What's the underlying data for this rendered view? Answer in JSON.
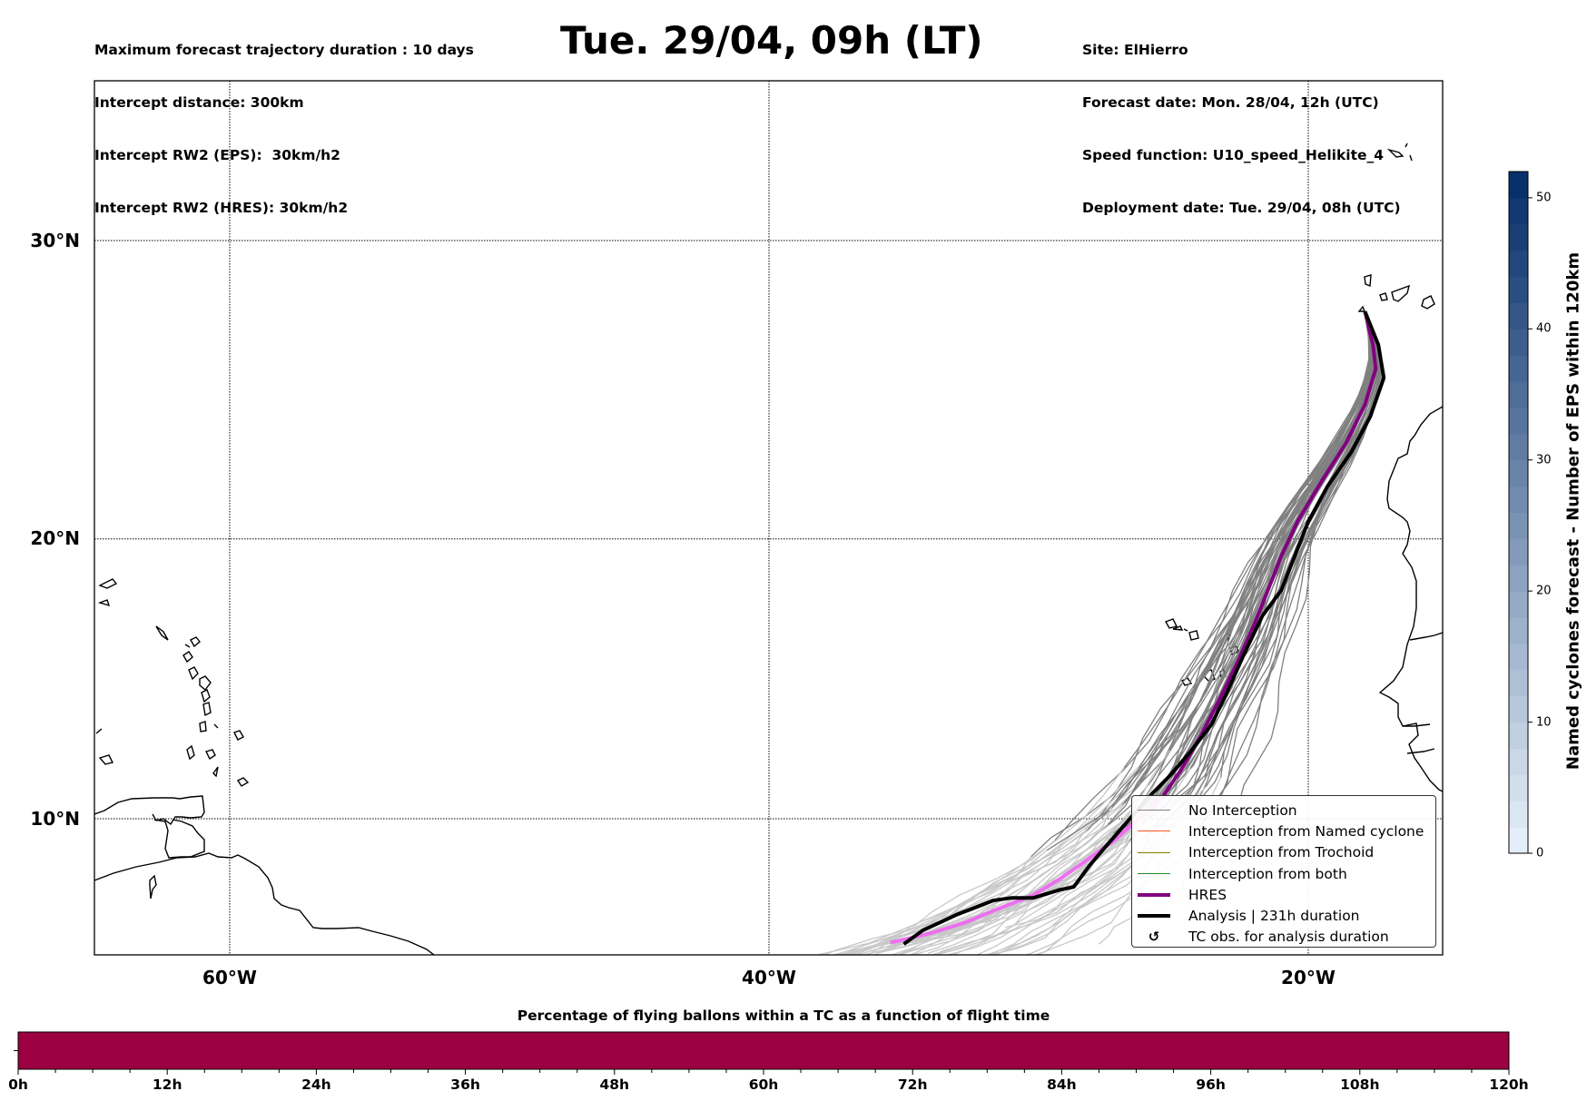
{
  "header": {
    "left_lines": [
      "Maximum forecast trajectory duration : 10 days",
      "Intercept distance: 300km",
      "Intercept RW2 (EPS):  30km/h2",
      "Intercept RW2 (HRES): 30km/h2"
    ],
    "title": "Tue. 29/04, 09h (LT)",
    "right_lines": [
      "Site: ElHierro",
      "Forecast date: Mon. 28/04, 12h (UTC)",
      "Speed function: U10_speed_Helikite_4",
      "Deployment date: Tue. 29/04, 08h (UTC)"
    ]
  },
  "colors": {
    "no_interception": "#808080",
    "no_interception_late": "#c8c8c8",
    "named_cyclone": "#ff5722",
    "trochoid": "#808000",
    "both": "#228b22",
    "hres": "#800080",
    "hres_late": "#ee6ef0",
    "analysis": "#000000",
    "time_bar": "#9b0041"
  },
  "chart_data": [
    {
      "type": "line",
      "title": "Tue. 29/04, 09h (LT)",
      "projection": "mercator",
      "xlim": [
        -65,
        -15
      ],
      "ylim": [
        5.3,
        35.2
      ],
      "xticks": [
        -60,
        -40,
        -20
      ],
      "xtick_labels": [
        "60°W",
        "40°W",
        "20°W"
      ],
      "yticks": [
        10,
        20,
        30
      ],
      "ytick_labels": [
        "10°N",
        "20°N",
        "30°N"
      ],
      "grid": true,
      "launch_site": {
        "name": "ElHierro",
        "lon": -17.9,
        "lat": 27.7
      },
      "series": [
        {
          "name": "HRES",
          "points": [
            [
              -17.9,
              27.7
            ],
            [
              -17.6,
              26.6
            ],
            [
              -17.5,
              25.8
            ],
            [
              -17.9,
              24.6
            ],
            [
              -18.6,
              23.3
            ],
            [
              -19.5,
              22.0
            ],
            [
              -20.4,
              20.6
            ],
            [
              -21.0,
              19.4
            ],
            [
              -21.5,
              18.2
            ],
            [
              -22.0,
              17.0
            ],
            [
              -22.6,
              15.7
            ],
            [
              -23.3,
              14.3
            ],
            [
              -24.0,
              13.0
            ],
            [
              -24.7,
              11.8
            ],
            [
              -25.4,
              10.8
            ],
            [
              -26.3,
              10.0
            ],
            [
              -27.2,
              9.2
            ],
            [
              -28.2,
              8.5
            ],
            [
              -29.2,
              7.8
            ],
            [
              -30.2,
              7.2
            ],
            [
              -31.5,
              6.7
            ],
            [
              -32.7,
              6.2
            ],
            [
              -34.0,
              5.8
            ],
            [
              -35.5,
              5.45
            ]
          ]
        },
        {
          "name": "Analysis | 231h duration",
          "points": [
            [
              -17.9,
              27.7
            ],
            [
              -17.4,
              26.6
            ],
            [
              -17.2,
              25.5
            ],
            [
              -17.7,
              24.2
            ],
            [
              -18.4,
              23.0
            ],
            [
              -19.3,
              21.8
            ],
            [
              -20.0,
              20.6
            ],
            [
              -20.5,
              19.4
            ],
            [
              -21.0,
              18.2
            ],
            [
              -21.7,
              17.3
            ],
            [
              -22.4,
              15.9
            ],
            [
              -23.0,
              14.6
            ],
            [
              -23.6,
              13.4
            ],
            [
              -24.4,
              12.4
            ],
            [
              -25.1,
              11.6
            ],
            [
              -25.9,
              10.8
            ],
            [
              -26.7,
              9.9
            ],
            [
              -27.5,
              9.0
            ],
            [
              -28.1,
              8.3
            ],
            [
              -28.7,
              7.5
            ],
            [
              -29.2,
              7.4
            ],
            [
              -30.2,
              7.1
            ],
            [
              -31.0,
              7.1
            ],
            [
              -31.7,
              7.0
            ],
            [
              -33.0,
              6.5
            ],
            [
              -34.3,
              5.9
            ],
            [
              -35.0,
              5.4
            ]
          ]
        }
      ],
      "ensemble_members": 50,
      "legend": {
        "position": "bottom-right",
        "entries": [
          {
            "label": "No Interception",
            "style": "thin",
            "color_key": "no_interception"
          },
          {
            "label": "Interception from Named cyclone",
            "style": "thin",
            "color_key": "named_cyclone"
          },
          {
            "label": "Interception from Trochoid",
            "style": "thin",
            "color_key": "trochoid"
          },
          {
            "label": "Interception from both",
            "style": "thin",
            "color_key": "both"
          },
          {
            "label": "HRES",
            "style": "thick",
            "color_key": "hres"
          },
          {
            "label": "Analysis | 231h duration",
            "style": "thick",
            "color_key": "analysis"
          },
          {
            "label": "TC obs. for analysis duration",
            "style": "marker",
            "marker": "↺"
          }
        ]
      }
    },
    {
      "type": "heatmap",
      "name": "colorbar",
      "label": "Named cyclones forecast - Number of EPS within 120km",
      "range": [
        0,
        52
      ],
      "ticks": [
        0,
        10,
        20,
        30,
        40,
        50
      ],
      "tick_labels": [
        "0",
        "10",
        "20",
        "30",
        "40",
        "50"
      ],
      "levels": 26,
      "colormap": "Blues"
    },
    {
      "type": "bar",
      "title": "Percentage of flying ballons within a TC as a function of flight time",
      "xlim": [
        0,
        120
      ],
      "xticks": [
        0,
        12,
        24,
        36,
        48,
        60,
        72,
        84,
        96,
        108,
        120
      ],
      "xtick_labels": [
        "0h",
        "12h",
        "24h",
        "36h",
        "48h",
        "60h",
        "72h",
        "84h",
        "96h",
        "108h",
        "120h"
      ],
      "minor_tick_step": 3,
      "values_percent": [
        0
      ],
      "fill": "uniform"
    }
  ]
}
